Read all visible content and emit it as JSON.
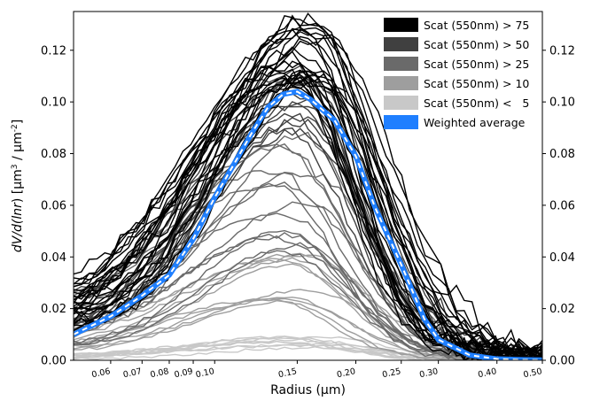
{
  "chart_data": {
    "type": "line",
    "title": "",
    "xlabel": "Radius (μm)",
    "ylabel": "dV/d(lnr) [μm3 / μm-2]",
    "ylabel_parts": {
      "pre": "dV/d(",
      "ital": "lnr",
      "mid": ") [μm",
      "sup1": "3",
      "mid2": " / μm",
      "sup2": "-2",
      "post": "]"
    },
    "x_scale": "log",
    "xlim": [
      0.05,
      0.5
    ],
    "ylim": [
      0.0,
      0.135
    ],
    "x_ticks": [
      0.06,
      0.07,
      0.08,
      0.09,
      0.1,
      0.15,
      0.2,
      0.25,
      0.3,
      0.4,
      0.5
    ],
    "x_tick_labels": [
      "0.06",
      "0.07",
      "0.08",
      "0.09",
      "0.10",
      "0.15",
      "0.20",
      "0.25",
      "0.30",
      "0.40",
      "0.50"
    ],
    "y_ticks": [
      0.0,
      0.02,
      0.04,
      0.06,
      0.08,
      0.1,
      0.12
    ],
    "y_tick_labels": [
      "0.00",
      "0.02",
      "0.04",
      "0.06",
      "0.08",
      "0.10",
      "0.12"
    ],
    "right_y_axis_mirrors_left": true,
    "legend_position": "top-right",
    "legend": [
      {
        "label": "Scat (550nm) > 75",
        "color": "#000000"
      },
      {
        "label": "Scat (550nm) > 50",
        "color": "#404040"
      },
      {
        "label": "Scat (550nm) > 25",
        "color": "#6a6a6a"
      },
      {
        "label": "Scat (550nm) > 10",
        "color": "#9e9e9e"
      },
      {
        "label": "Scat (550nm) <   5",
        "color": "#c8c8c8"
      },
      {
        "label": "Weighted average",
        "color": "#1f7fff"
      }
    ],
    "weighted_average": {
      "color": "#1f7fff",
      "x": [
        0.05,
        0.06,
        0.07,
        0.08,
        0.09,
        0.1,
        0.11,
        0.12,
        0.13,
        0.14,
        0.15,
        0.16,
        0.18,
        0.2,
        0.22,
        0.25,
        0.28,
        0.3,
        0.35,
        0.4,
        0.45,
        0.5
      ],
      "y": [
        0.01,
        0.017,
        0.025,
        0.033,
        0.047,
        0.063,
        0.076,
        0.088,
        0.098,
        0.103,
        0.104,
        0.101,
        0.093,
        0.079,
        0.059,
        0.037,
        0.016,
        0.008,
        0.002,
        0.0005,
        0.0002,
        0.0001
      ]
    },
    "series_groups": [
      {
        "group": "Scat (550nm) > 75",
        "color": "#000000",
        "count": 26,
        "peak_range": [
          0.1,
          0.13
        ],
        "peak_x_range": [
          0.14,
          0.17
        ]
      },
      {
        "group": "Scat (550nm) > 50",
        "color": "#404040",
        "count": 14,
        "peak_range": [
          0.085,
          0.11
        ],
        "peak_x_range": [
          0.14,
          0.16
        ]
      },
      {
        "group": "Scat (550nm) > 25",
        "color": "#6a6a6a",
        "count": 14,
        "peak_range": [
          0.04,
          0.085
        ],
        "peak_x_range": [
          0.13,
          0.16
        ]
      },
      {
        "group": "Scat (550nm) > 10",
        "color": "#9e9e9e",
        "count": 10,
        "peak_range": [
          0.015,
          0.04
        ],
        "peak_x_range": [
          0.13,
          0.16
        ]
      },
      {
        "group": "Scat (550nm) <   5",
        "color": "#c8c8c8",
        "count": 9,
        "peak_range": [
          0.002,
          0.009
        ],
        "peak_x_range": [
          0.12,
          0.17
        ]
      }
    ]
  }
}
